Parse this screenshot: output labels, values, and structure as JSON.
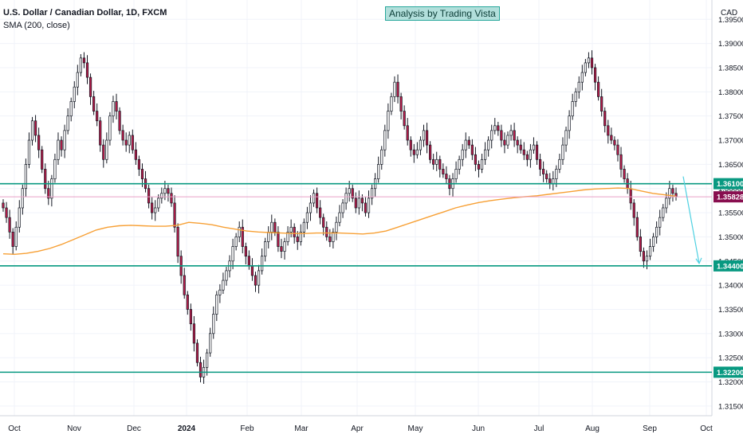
{
  "chart_data": {
    "type": "candlestick",
    "title": "U.S. Dollar / Canadian Dollar, 1D, FXCM",
    "indicator": "SMA (200, close)",
    "annotation": "Analysis by Trading Vista",
    "currency": "CAD",
    "ylim": [
      1.313,
      1.399
    ],
    "y_ticks": [
      "1.39500",
      "1.39000",
      "1.38500",
      "1.38000",
      "1.37500",
      "1.37000",
      "1.36500",
      "1.36000",
      "1.35500",
      "1.35000",
      "1.34500",
      "1.34000",
      "1.33500",
      "1.33000",
      "1.32500",
      "1.32000",
      "1.31500"
    ],
    "x_ticks": [
      "Oct",
      "Nov",
      "Dec",
      "2024",
      "Feb",
      "Mar",
      "Apr",
      "May",
      "Jun",
      "Jul",
      "Aug",
      "Sep",
      "Oct"
    ],
    "horizontal_levels": [
      {
        "value": 1.361,
        "label": "1.36100",
        "color": "#089981"
      },
      {
        "value": 1.344,
        "label": "1.34400",
        "color": "#089981"
      },
      {
        "value": 1.322,
        "label": "1.32200",
        "color": "#089981"
      }
    ],
    "last_price": {
      "value": 1.35828,
      "label": "1.35828",
      "color": "#880e4f"
    },
    "projection": {
      "from": 1.3625,
      "to": 1.3445,
      "color": "#4dd0e1"
    },
    "colors": {
      "up": "#ffffff",
      "down": "#b71c4a",
      "wick": "#131722",
      "sma": "#f7a035",
      "grid": "#f0f3fa"
    },
    "closes": [
      1.356,
      1.354,
      1.351,
      1.348,
      1.352,
      1.356,
      1.36,
      1.365,
      1.37,
      1.374,
      1.371,
      1.368,
      1.364,
      1.36,
      1.358,
      1.362,
      1.366,
      1.37,
      1.368,
      1.372,
      1.375,
      1.378,
      1.381,
      1.384,
      1.387,
      1.386,
      1.383,
      1.379,
      1.376,
      1.374,
      1.369,
      1.366,
      1.37,
      1.375,
      1.378,
      1.376,
      1.372,
      1.37,
      1.369,
      1.371,
      1.368,
      1.366,
      1.364,
      1.362,
      1.36,
      1.357,
      1.355,
      1.356,
      1.358,
      1.359,
      1.36,
      1.359,
      1.357,
      1.352,
      1.346,
      1.342,
      1.338,
      1.335,
      1.332,
      1.328,
      1.324,
      1.321,
      1.323,
      1.326,
      1.33,
      1.334,
      1.338,
      1.339,
      1.341,
      1.343,
      1.345,
      1.348,
      1.35,
      1.352,
      1.348,
      1.346,
      1.344,
      1.342,
      1.34,
      1.343,
      1.346,
      1.349,
      1.351,
      1.353,
      1.351,
      1.348,
      1.347,
      1.349,
      1.351,
      1.352,
      1.35,
      1.349,
      1.351,
      1.353,
      1.355,
      1.357,
      1.359,
      1.356,
      1.354,
      1.352,
      1.35,
      1.349,
      1.351,
      1.353,
      1.355,
      1.357,
      1.359,
      1.36,
      1.358,
      1.356,
      1.358,
      1.357,
      1.355,
      1.358,
      1.36,
      1.362,
      1.365,
      1.368,
      1.372,
      1.376,
      1.379,
      1.382,
      1.379,
      1.376,
      1.373,
      1.37,
      1.368,
      1.367,
      1.368,
      1.37,
      1.372,
      1.369,
      1.366,
      1.365,
      1.366,
      1.364,
      1.363,
      1.362,
      1.36,
      1.362,
      1.364,
      1.366,
      1.368,
      1.37,
      1.369,
      1.367,
      1.365,
      1.364,
      1.366,
      1.368,
      1.37,
      1.372,
      1.373,
      1.372,
      1.37,
      1.369,
      1.371,
      1.372,
      1.37,
      1.369,
      1.368,
      1.367,
      1.366,
      1.368,
      1.369,
      1.366,
      1.364,
      1.363,
      1.362,
      1.361,
      1.362,
      1.364,
      1.366,
      1.369,
      1.372,
      1.375,
      1.378,
      1.38,
      1.382,
      1.384,
      1.386,
      1.387,
      1.385,
      1.382,
      1.379,
      1.376,
      1.373,
      1.371,
      1.37,
      1.369,
      1.367,
      1.364,
      1.362,
      1.36,
      1.357,
      1.354,
      1.35,
      1.347,
      1.345,
      1.346,
      1.348,
      1.35,
      1.352,
      1.354,
      1.356,
      1.358,
      1.36,
      1.359,
      1.3583
    ],
    "sma": [
      1.3465,
      1.3464,
      1.3466,
      1.347,
      1.3476,
      1.3484,
      1.3494,
      1.3504,
      1.3514,
      1.352,
      1.3523,
      1.3524,
      1.3523,
      1.3522,
      1.3522,
      1.3524,
      1.353,
      1.3528,
      1.3525,
      1.352,
      1.3516,
      1.3512,
      1.351,
      1.3509,
      1.3508,
      1.3507,
      1.3507,
      1.3508,
      1.3508,
      1.3508,
      1.3507,
      1.3506,
      1.3508,
      1.3512,
      1.352,
      1.3528,
      1.3536,
      1.3544,
      1.3552,
      1.356,
      1.3566,
      1.3571,
      1.3575,
      1.3578,
      1.3581,
      1.3583,
      1.3585,
      1.3588,
      1.3591,
      1.3594,
      1.3597,
      1.3599,
      1.36,
      1.3601,
      1.36,
      1.3595,
      1.359,
      1.3587,
      1.3584
    ]
  }
}
